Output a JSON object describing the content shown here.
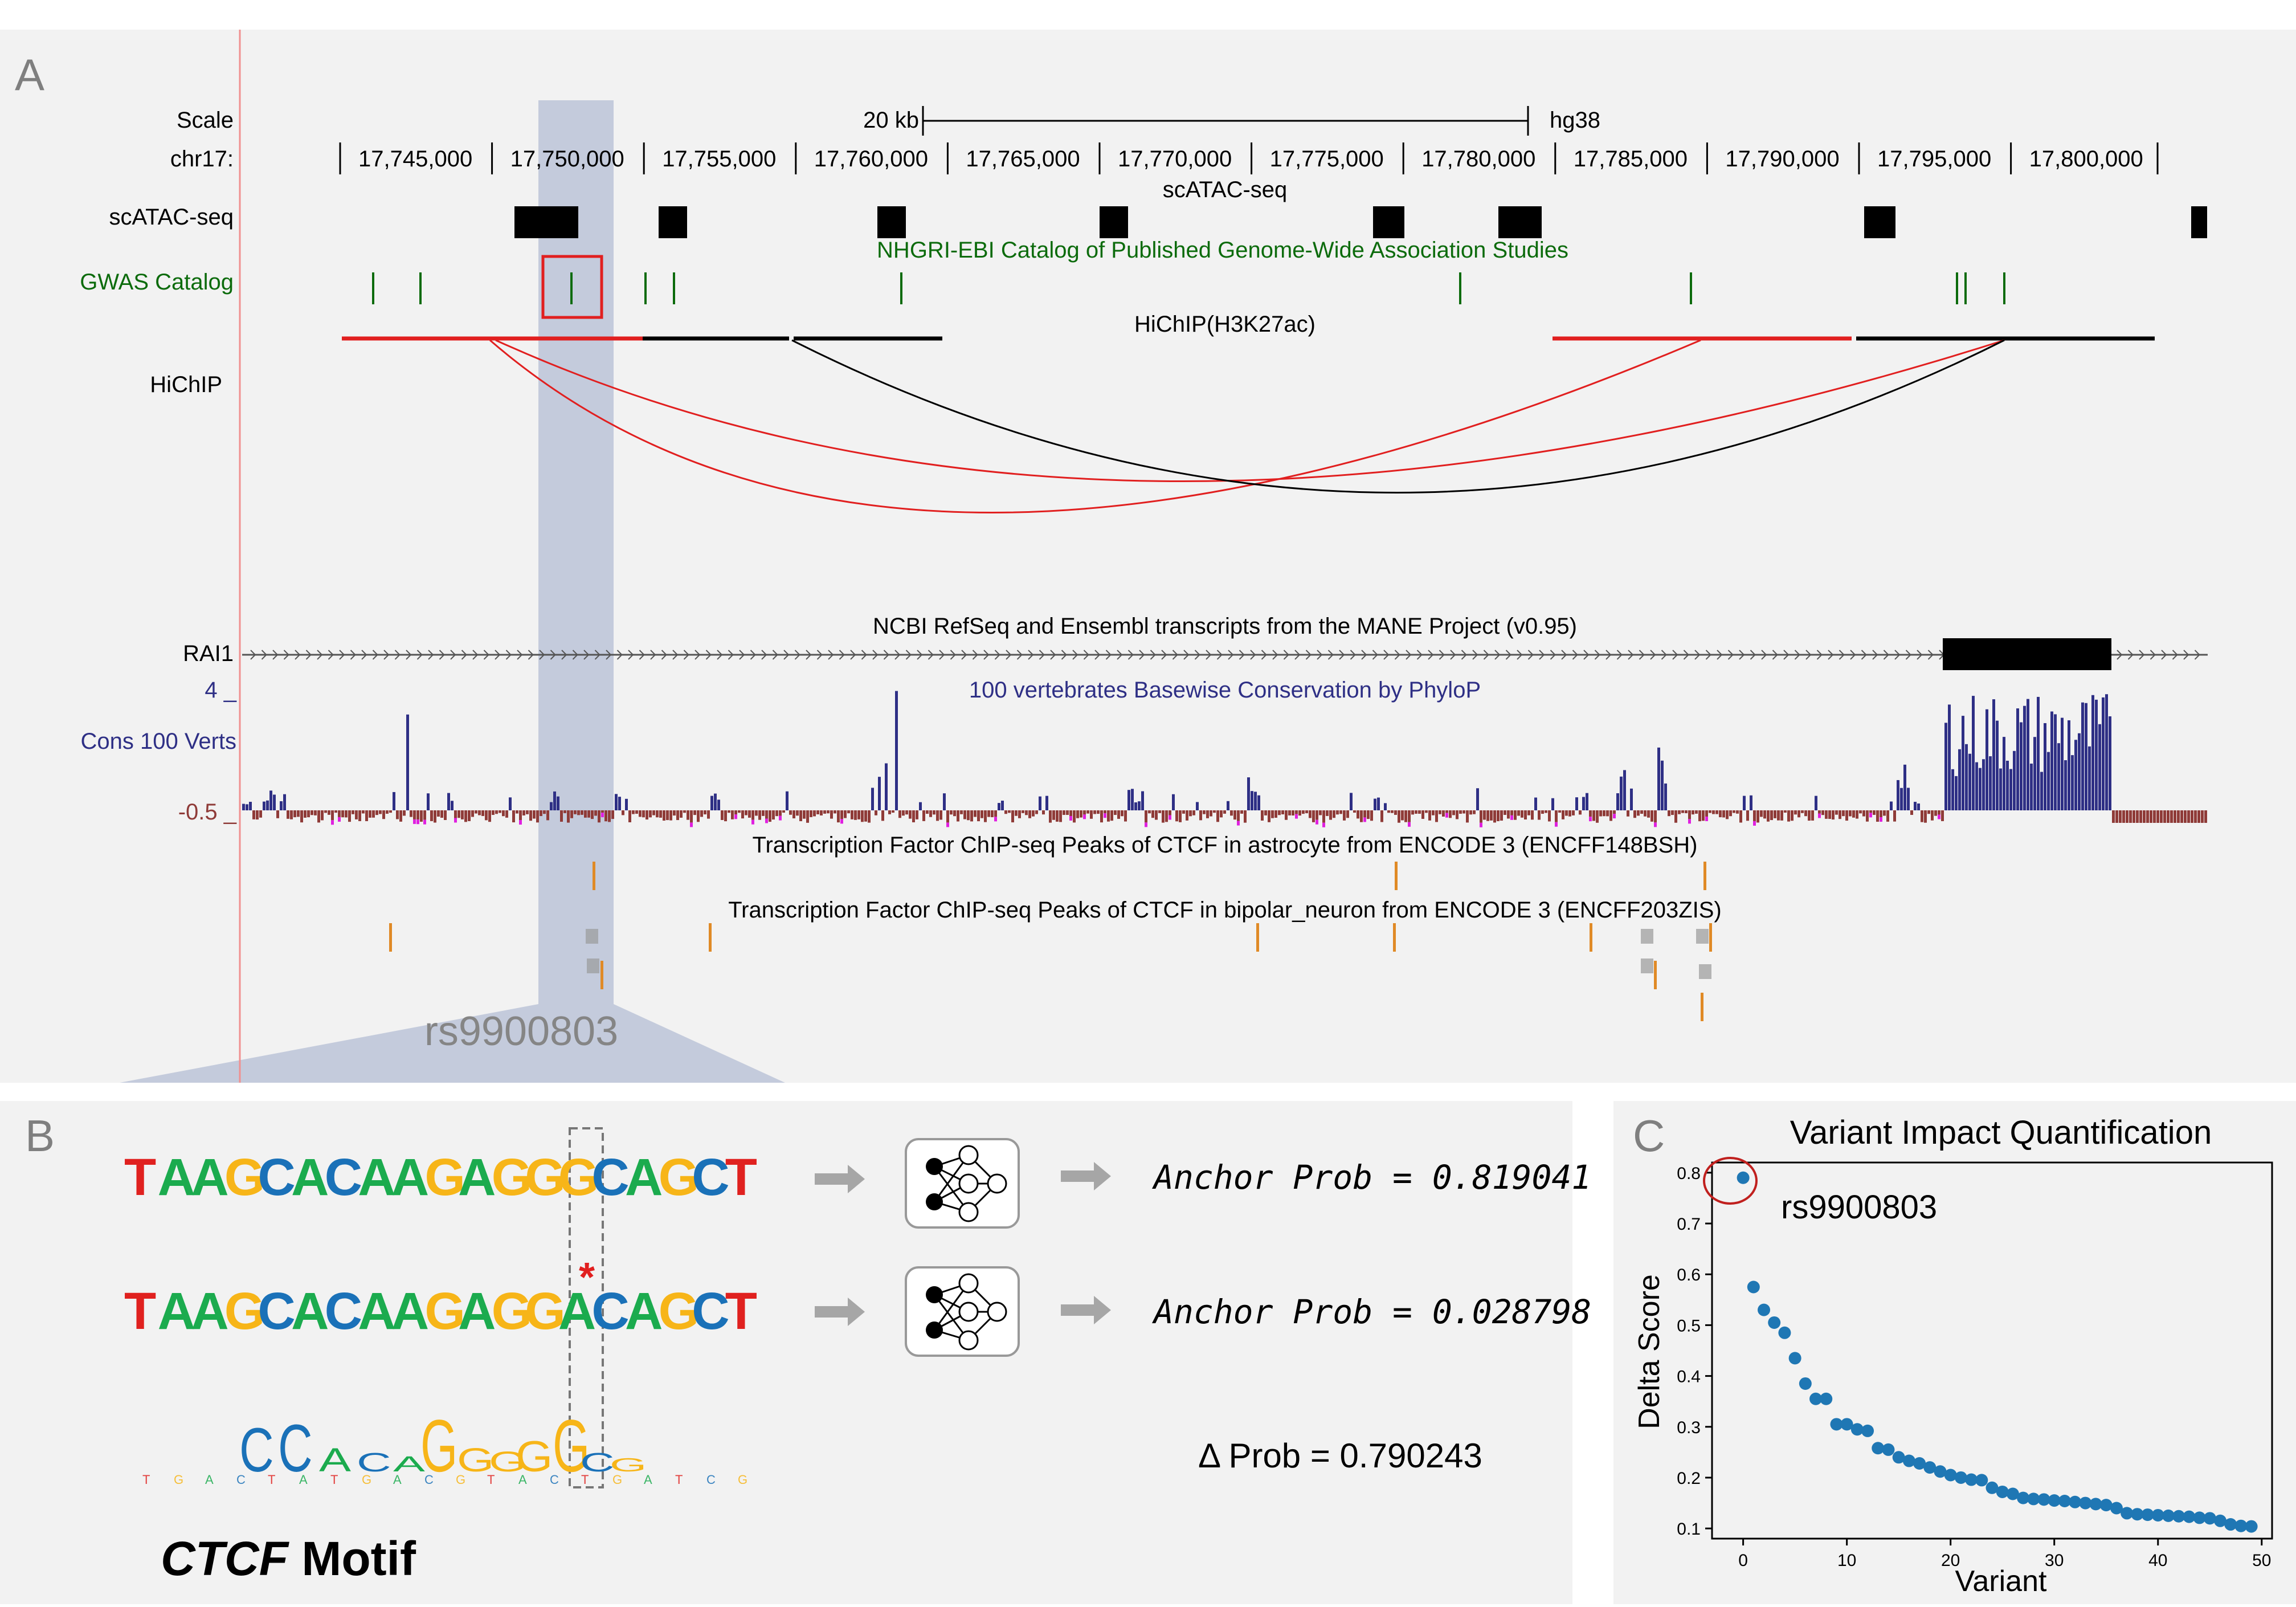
{
  "panelA": {
    "letter": "A",
    "scale_label": "Scale",
    "chrom_label": "chr17:",
    "scalebar_text": "20 kb",
    "assembly": "hg38",
    "ruler_ticks": [
      "17,745,000",
      "17,750,000",
      "17,755,000",
      "17,760,000",
      "17,765,000",
      "17,770,000",
      "17,775,000",
      "17,780,000",
      "17,785,000",
      "17,790,000",
      "17,795,000",
      "17,800,000"
    ],
    "scatac_title": "scATAC-seq",
    "scatac_label": "scATAC-seq",
    "gwas_title": "NHGRI-EBI Catalog of Published Genome-Wide Association Studies",
    "gwas_label": "GWAS Catalog",
    "hichip_title": "HiChIP(H3K27ac)",
    "hichip_label": "HiChIP",
    "mane_title": "NCBI RefSeq and Ensembl transcripts from the MANE Project (v0.95)",
    "gene_label": "RAI1",
    "phylop_title": "100 vertebrates Basewise Conservation by PhyloP",
    "phylop_label": "Cons 100 Verts",
    "phylop_max": "4 _",
    "phylop_min": "-0.5 _",
    "ctcf_astro_title": "Transcription Factor ChIP-seq Peaks of CTCF in astrocyte from ENCODE 3 (ENCFF148BSH)",
    "ctcf_bipolar_title": "Transcription Factor ChIP-seq Peaks of CTCF in bipolar_neuron from ENCODE 3 (ENCFF203ZIS)",
    "variant_label": "rs9900803"
  },
  "panelB": {
    "letter": "B",
    "ref_sequence": [
      "T",
      "A",
      "A",
      "G",
      "C",
      "A",
      "C",
      "A",
      "A",
      "G",
      "A",
      "G",
      "G",
      "G",
      "C",
      "A",
      "G",
      "C",
      "T"
    ],
    "alt_sequence": [
      "T",
      "A",
      "A",
      "G",
      "C",
      "A",
      "C",
      "A",
      "A",
      "G",
      "A",
      "G",
      "G",
      "A",
      "C",
      "A",
      "G",
      "C",
      "T"
    ],
    "mutation_marker": "*",
    "ref_prob": "Anchor Prob = 0.819041",
    "alt_prob": "Anchor Prob = 0.028798",
    "delta_prob": "Δ Prob = 0.790243",
    "motif_name": "CTCF",
    "motif_suffix": " Motif",
    "motif_letters_large": [
      "C",
      "C",
      "A",
      "C",
      "A",
      "G",
      "G",
      "G",
      "G",
      "G",
      "C",
      "G"
    ],
    "base_colors": {
      "A": "#1bab4e",
      "C": "#1a71b8",
      "G": "#f7b518",
      "T": "#e0211f"
    }
  },
  "chart_data": {
    "type": "scatter",
    "title": "Variant Impact Quantification",
    "xlabel": "Variant",
    "ylabel": "Delta Score",
    "xlim": [
      -3,
      51
    ],
    "ylim": [
      0.08,
      0.82
    ],
    "xticks": [
      0,
      10,
      20,
      30,
      40,
      50
    ],
    "yticks": [
      0.1,
      0.2,
      0.3,
      0.4,
      0.5,
      0.6,
      0.7,
      0.8
    ],
    "annotation": "rs9900803",
    "x": [
      0,
      1,
      2,
      3,
      4,
      5,
      6,
      7,
      8,
      9,
      10,
      11,
      12,
      13,
      14,
      15,
      16,
      17,
      18,
      19,
      20,
      21,
      22,
      23,
      24,
      25,
      26,
      27,
      28,
      29,
      30,
      31,
      32,
      33,
      34,
      35,
      36,
      37,
      38,
      39,
      40,
      41,
      42,
      43,
      44,
      45,
      46,
      47,
      48,
      49
    ],
    "y": [
      0.79,
      0.575,
      0.53,
      0.505,
      0.485,
      0.435,
      0.385,
      0.355,
      0.355,
      0.305,
      0.305,
      0.295,
      0.292,
      0.258,
      0.255,
      0.24,
      0.233,
      0.228,
      0.22,
      0.212,
      0.205,
      0.2,
      0.196,
      0.195,
      0.18,
      0.172,
      0.168,
      0.16,
      0.158,
      0.157,
      0.155,
      0.154,
      0.152,
      0.15,
      0.148,
      0.146,
      0.14,
      0.13,
      0.128,
      0.127,
      0.126,
      0.125,
      0.124,
      0.123,
      0.121,
      0.12,
      0.115,
      0.108,
      0.105,
      0.104
    ]
  }
}
